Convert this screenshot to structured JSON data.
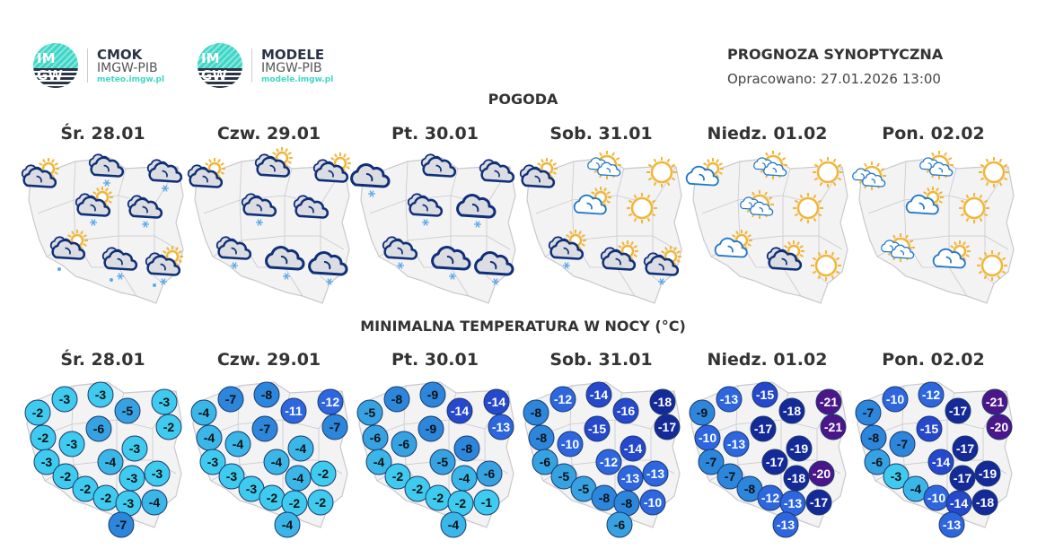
{
  "logos": [
    {
      "name": "CMOK",
      "org": "IMGW-PIB",
      "site": "meteo.imgw.pl",
      "mark": "IMGW"
    },
    {
      "name": "MODELE",
      "org": "IMGW-PIB",
      "site": "modele.imgw.pl",
      "mark": "IMGW"
    }
  ],
  "header": {
    "title": "PROGNOZA SYNOPTYCZNA",
    "issued": "Opracowano: 27.01.2026 13:00"
  },
  "weather_section": {
    "title": "POGODA"
  },
  "temp_section": {
    "title": "MINIMALNA TEMPERATURA W NOCY (°C)"
  },
  "days": [
    "Śr. 28.01",
    "Czw. 29.01",
    "Pt. 30.01",
    "Sob. 31.01",
    "Niedz. 01.02",
    "Pon. 02.02"
  ],
  "weather": [
    [
      "dark-cloud-sun",
      "dark-cloud-snow",
      "dark-cloud-snow",
      "dark-cloud-sun-snow",
      "dark-cloud-snow",
      "dark-cloud-sun-rain",
      "dark-cloud-snow-rain",
      "dark-cloud-sun-snow-rain"
    ],
    [
      "dark-cloud-sun",
      "dark-cloud-sun",
      "dark-cloud-sun",
      "dark-cloud-snow",
      "dark-cloud",
      "dark-cloud-snow",
      "overcast-snow",
      "overcast-snow"
    ],
    [
      "overcast-snow",
      "dark-cloud",
      "dark-cloud",
      "dark-cloud-snow",
      "overcast-snow",
      "dark-cloud-snow",
      "overcast-snow",
      "overcast-snow"
    ],
    [
      "dark-cloud-sun",
      "small-clouds-sun",
      "sun",
      "light-cloud-sun",
      "sun",
      "dark-cloud-sun-snow",
      "dark-cloud-sun",
      "dark-cloud-sun-snow"
    ],
    [
      "light-cloud-sun",
      "small-clouds-sun",
      "sun",
      "small-clouds-sun",
      "sun",
      "light-cloud-sun",
      "dark-cloud-sun",
      "sun"
    ],
    [
      "small-clouds-sun",
      "small-clouds-sun",
      "sun",
      "light-cloud-sun",
      "sun",
      "small-clouds-sun",
      "light-cloud-sun",
      "sun"
    ]
  ],
  "temperatures": [
    [
      -2,
      -3,
      -3,
      -5,
      -3,
      -2,
      -6,
      -2,
      -3,
      -3,
      -4,
      -3,
      -2,
      -3,
      -3,
      -2,
      -2,
      -3,
      -4,
      -7
    ],
    [
      -4,
      -7,
      -8,
      -11,
      -12,
      -7,
      -7,
      -4,
      -4,
      -4,
      -4,
      -3,
      -3,
      -4,
      -2,
      -3,
      -2,
      -2,
      -2,
      -4
    ],
    [
      -5,
      -8,
      -9,
      -14,
      -14,
      -13,
      -9,
      -6,
      -6,
      -8,
      -5,
      -4,
      -2,
      -4,
      -6,
      -2,
      -2,
      -2,
      -1,
      -4
    ],
    [
      -8,
      -12,
      -14,
      -16,
      -18,
      -17,
      -15,
      -8,
      -10,
      -14,
      -12,
      -6,
      -5,
      -13,
      -13,
      -5,
      -8,
      -8,
      -10,
      -6
    ],
    [
      -9,
      -13,
      -15,
      -18,
      -21,
      -21,
      -17,
      -10,
      -13,
      -19,
      -17,
      -7,
      -7,
      -18,
      -20,
      -8,
      -12,
      -13,
      -17,
      -13
    ],
    [
      -7,
      -10,
      -12,
      -17,
      -21,
      -20,
      -15,
      -8,
      -7,
      -17,
      -14,
      -6,
      -3,
      -17,
      -19,
      -4,
      -10,
      -14,
      -18,
      -13
    ]
  ],
  "colors": {
    "sun": "#f2b538",
    "cloud_dark": "#0f2f78",
    "cloud_light": "#1f78c8",
    "snow": "#5aa8e8",
    "map_fill": "#f3f3f4",
    "map_border": "#c9c9cc"
  }
}
